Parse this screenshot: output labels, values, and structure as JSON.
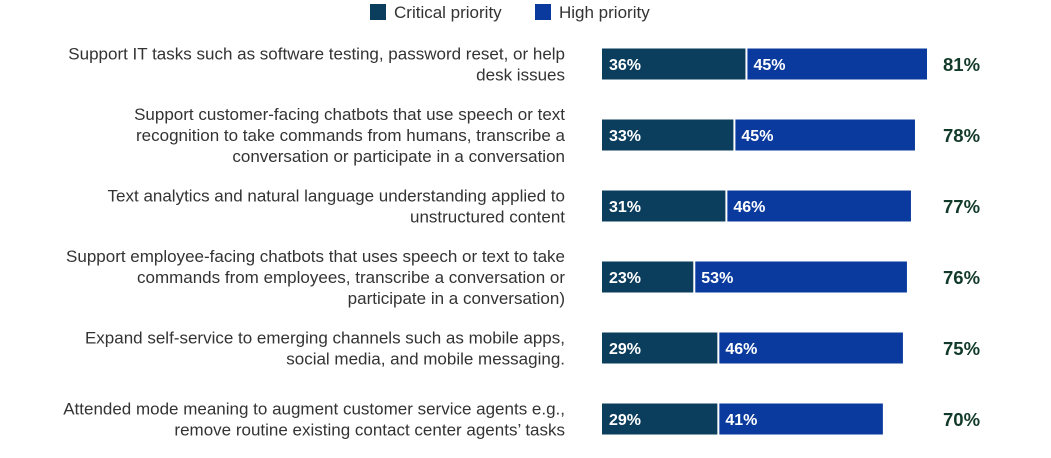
{
  "chart_data": {
    "type": "bar",
    "orientation": "horizontal",
    "stacked": true,
    "legend_position": "top",
    "colors": {
      "critical": "#0b3d5c",
      "high": "#0a3a9e",
      "total_text": "#123a2a"
    },
    "categories": [
      [
        "Support IT tasks such as software testing, password reset, or help",
        "desk issues"
      ],
      [
        "Support customer-facing chatbots that use speech or text",
        "recognition to take commands from humans, transcribe a",
        "conversation or participate in a conversation"
      ],
      [
        "Text analytics and natural language understanding applied to",
        "unstructured content"
      ],
      [
        "Support employee-facing chatbots that uses speech or text to take",
        "commands from employees, transcribe a conversation or",
        "participate in a conversation)"
      ],
      [
        "Expand self-service to emerging channels such as mobile apps,",
        "social media, and mobile messaging."
      ],
      [
        "Attended mode meaning to augment customer service agents e.g.,",
        "remove routine existing contact center agents’ tasks"
      ]
    ],
    "series": [
      {
        "name": "Critical priority",
        "values": [
          36,
          33,
          31,
          23,
          29,
          29
        ],
        "labels": [
          "36%",
          "33%",
          "31%",
          "23%",
          "29%",
          "29%"
        ]
      },
      {
        "name": "High priority",
        "values": [
          45,
          45,
          46,
          53,
          46,
          41
        ],
        "labels": [
          "45%",
          "45%",
          "46%",
          "53%",
          "46%",
          "41%"
        ]
      }
    ],
    "totals": [
      81,
      78,
      77,
      76,
      75,
      70
    ],
    "total_labels": [
      "81%",
      "78%",
      "77%",
      "76%",
      "75%",
      "70%"
    ],
    "xlim": [
      0,
      81
    ]
  }
}
